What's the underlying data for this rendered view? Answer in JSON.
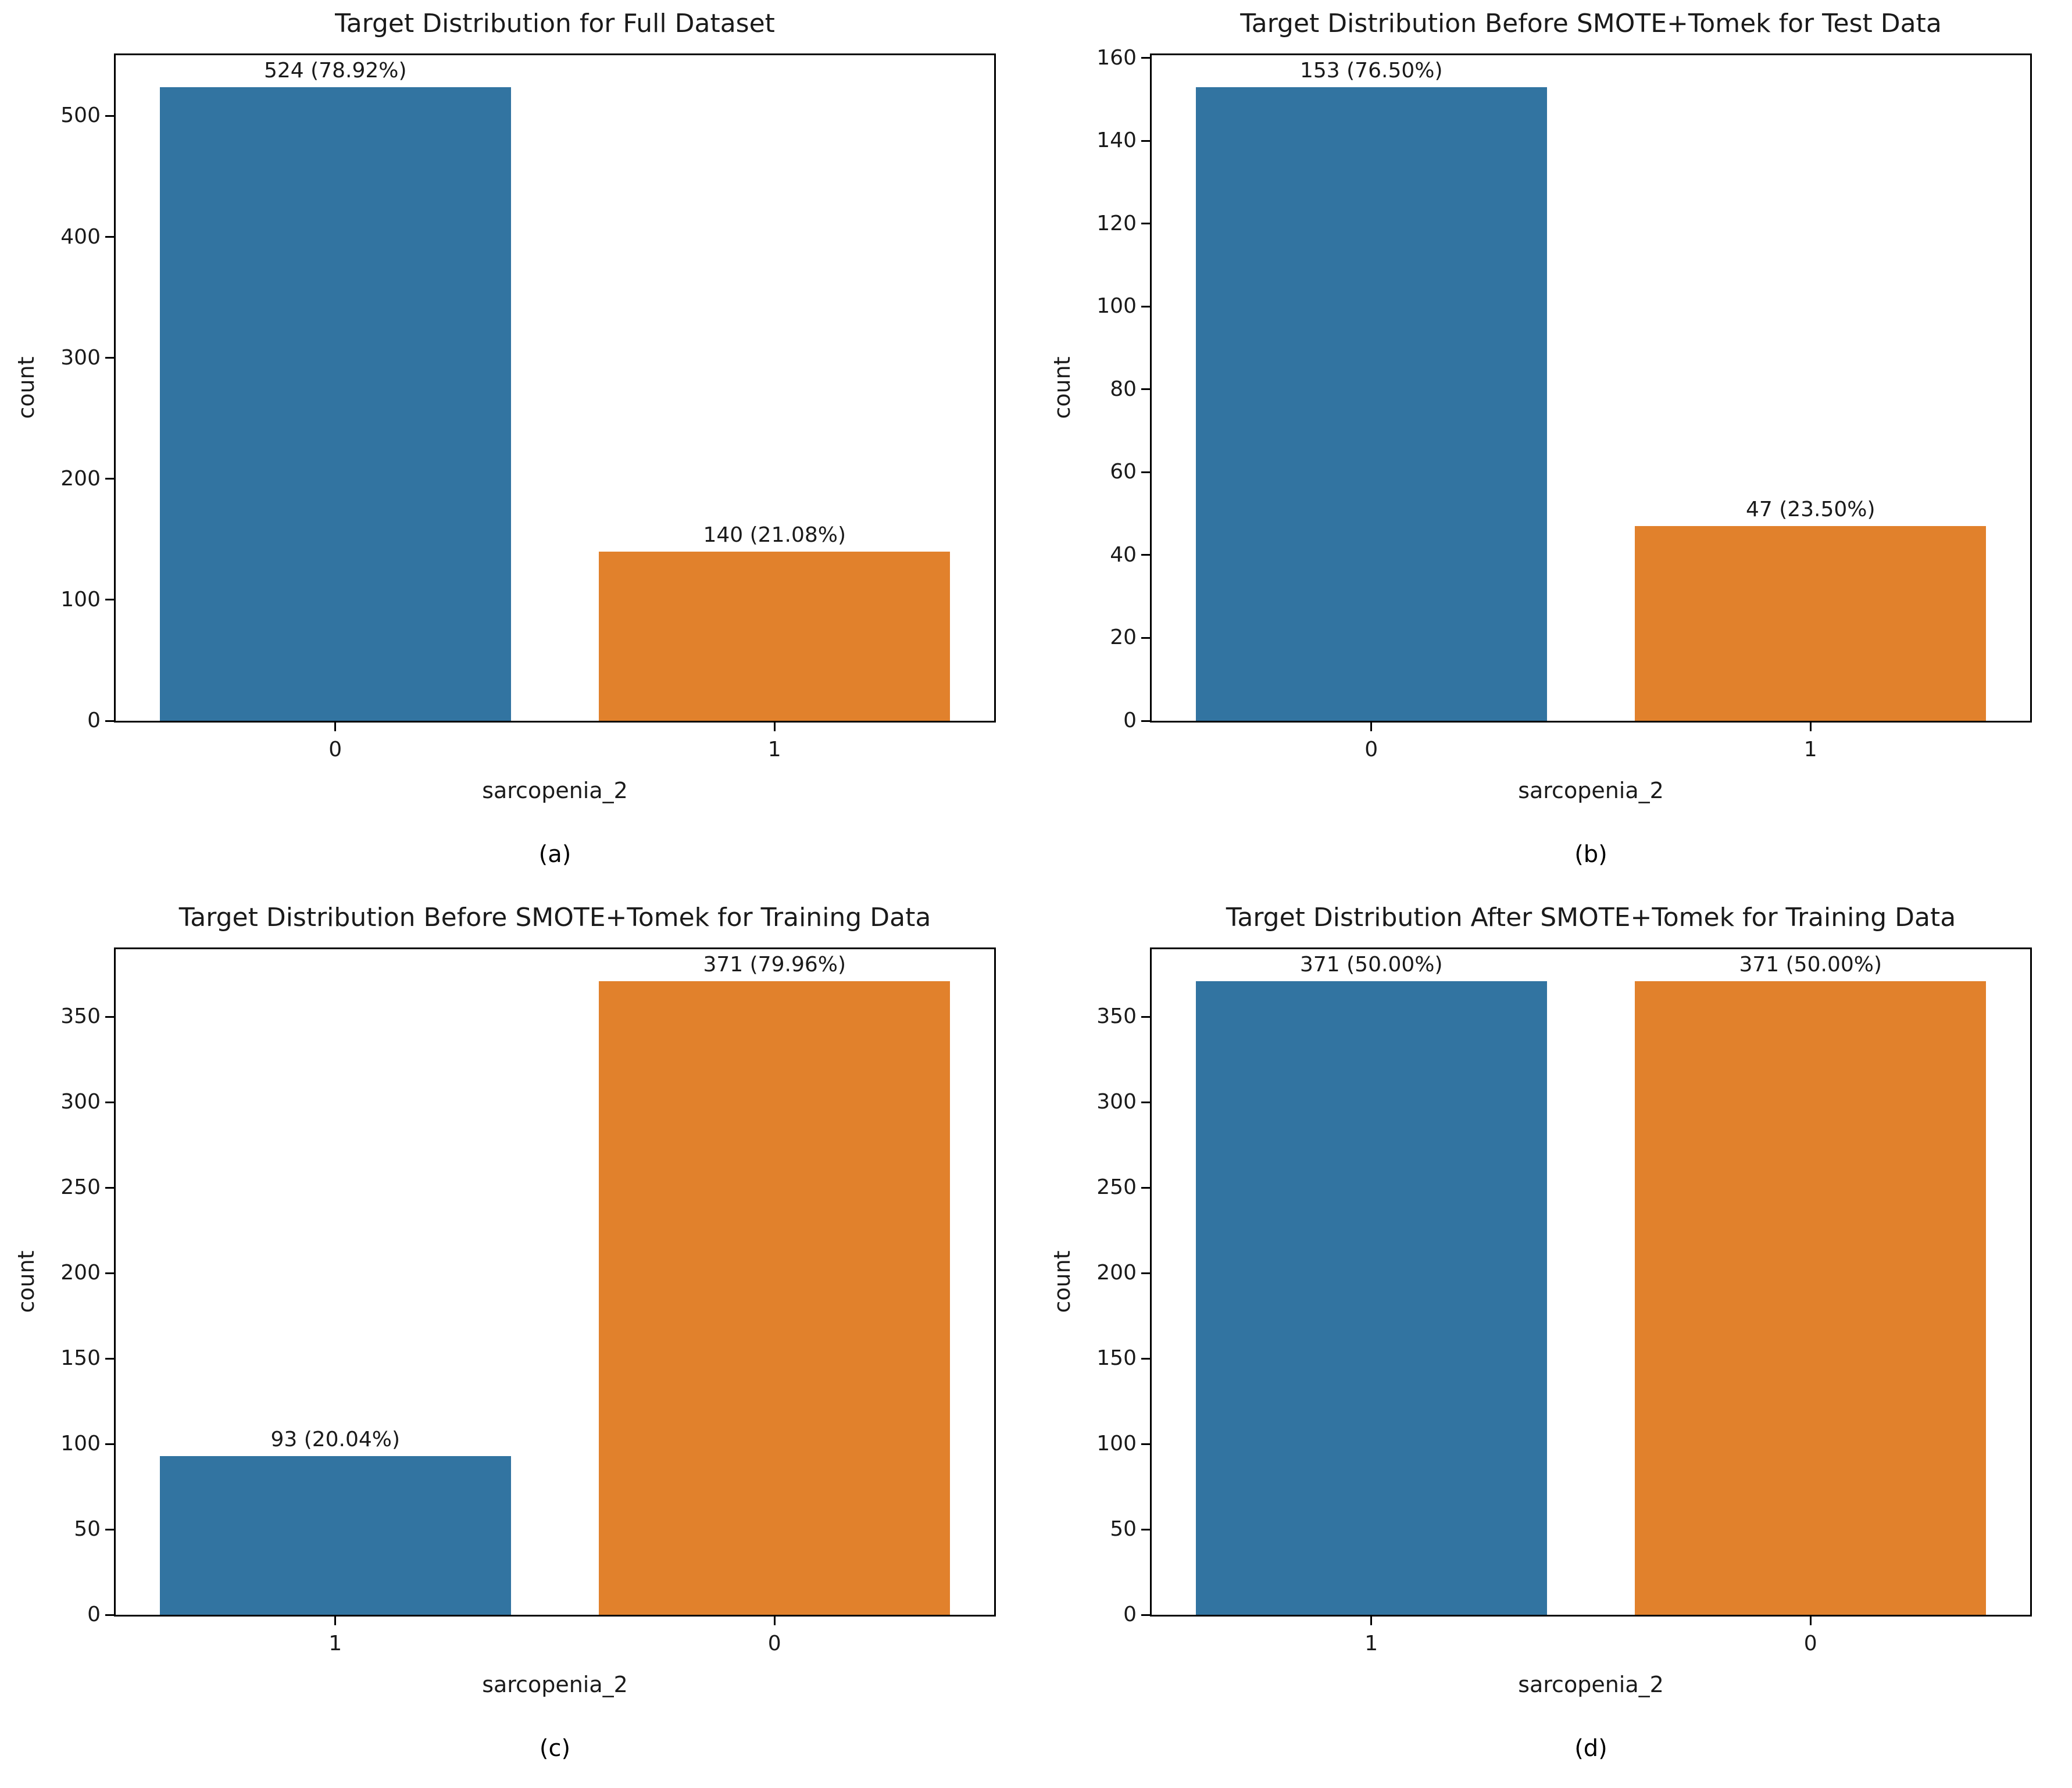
{
  "colors": {
    "bar_blue": "#3274a1",
    "bar_orange": "#e1812c",
    "text": "#1a1a1a",
    "spine": "#000000",
    "background": "#ffffff"
  },
  "chart_data": [
    {
      "type": "bar",
      "title": "Target Distribution for Full Dataset",
      "xlabel": "sarcopenia_2",
      "ylabel": "count",
      "caption": "(a)",
      "categories": [
        "0",
        "1"
      ],
      "values": [
        524,
        140
      ],
      "bar_labels": [
        "524 (78.92%)",
        "140 (21.08%)"
      ],
      "bar_colors": [
        "#3274a1",
        "#e1812c"
      ],
      "yticks": [
        0,
        100,
        200,
        300,
        400,
        500
      ],
      "ylim": [
        0,
        550.2
      ],
      "grid": false,
      "legend": "none"
    },
    {
      "type": "bar",
      "title": "Target Distribution Before SMOTE+Tomek for Test Data",
      "xlabel": "sarcopenia_2",
      "ylabel": "count",
      "caption": "(b)",
      "categories": [
        "0",
        "1"
      ],
      "values": [
        153,
        47
      ],
      "bar_labels": [
        "153 (76.50%)",
        "47 (23.50%)"
      ],
      "bar_colors": [
        "#3274a1",
        "#e1812c"
      ],
      "yticks": [
        0,
        20,
        40,
        60,
        80,
        100,
        120,
        140,
        160
      ],
      "ylim": [
        0,
        160.65
      ],
      "grid": false,
      "legend": "none"
    },
    {
      "type": "bar",
      "title": "Target Distribution Before SMOTE+Tomek for Training Data",
      "xlabel": "sarcopenia_2",
      "ylabel": "count",
      "caption": "(c)",
      "categories": [
        "1",
        "0"
      ],
      "values": [
        93,
        371
      ],
      "bar_labels": [
        "93 (20.04%)",
        "371 (79.96%)"
      ],
      "bar_colors": [
        "#3274a1",
        "#e1812c"
      ],
      "yticks": [
        0,
        50,
        100,
        150,
        200,
        250,
        300,
        350
      ],
      "ylim": [
        0,
        389.55
      ],
      "grid": false,
      "legend": "none"
    },
    {
      "type": "bar",
      "title": "Target Distribution After SMOTE+Tomek for Training Data",
      "xlabel": "sarcopenia_2",
      "ylabel": "count",
      "caption": "(d)",
      "categories": [
        "1",
        "0"
      ],
      "values": [
        371,
        371
      ],
      "bar_labels": [
        "371 (50.00%)",
        "371 (50.00%)"
      ],
      "bar_colors": [
        "#3274a1",
        "#e1812c"
      ],
      "yticks": [
        0,
        50,
        100,
        150,
        200,
        250,
        300,
        350
      ],
      "ylim": [
        0,
        389.55
      ],
      "grid": false,
      "legend": "none"
    }
  ]
}
